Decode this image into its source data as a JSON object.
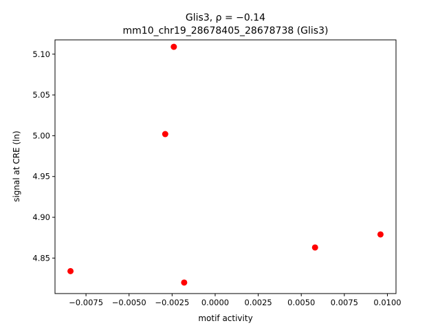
{
  "chart_data": {
    "type": "scatter",
    "title_line1": "Glis3, ρ = −0.14",
    "title_line2": "mm10_chr19_28678405_28678738 (Glis3)",
    "xlabel": "motif activity",
    "ylabel": "signal at CRE (ln)",
    "xlim": [
      -0.0093,
      0.0105
    ],
    "ylim": [
      4.8065,
      5.1175
    ],
    "xticks": [
      {
        "value": -0.0075,
        "label": "−0.0075"
      },
      {
        "value": -0.005,
        "label": "−0.0050"
      },
      {
        "value": -0.0025,
        "label": "−0.0025"
      },
      {
        "value": 0.0,
        "label": "0.0000"
      },
      {
        "value": 0.0025,
        "label": "0.0025"
      },
      {
        "value": 0.005,
        "label": "0.0050"
      },
      {
        "value": 0.0075,
        "label": "0.0075"
      },
      {
        "value": 0.01,
        "label": "0.0100"
      }
    ],
    "yticks": [
      {
        "value": 4.85,
        "label": "4.85"
      },
      {
        "value": 4.9,
        "label": "4.90"
      },
      {
        "value": 4.95,
        "label": "4.95"
      },
      {
        "value": 5.0,
        "label": "5.00"
      },
      {
        "value": 5.05,
        "label": "5.05"
      },
      {
        "value": 5.1,
        "label": "5.10"
      }
    ],
    "points": [
      {
        "x": -0.0084,
        "y": 4.834
      },
      {
        "x": -0.0024,
        "y": 5.109
      },
      {
        "x": -0.0029,
        "y": 5.002
      },
      {
        "x": -0.0018,
        "y": 4.82
      },
      {
        "x": 0.0058,
        "y": 4.863
      },
      {
        "x": 0.0096,
        "y": 4.879
      }
    ],
    "marker_color": "#ff0000",
    "grid": false,
    "legend": "none"
  }
}
